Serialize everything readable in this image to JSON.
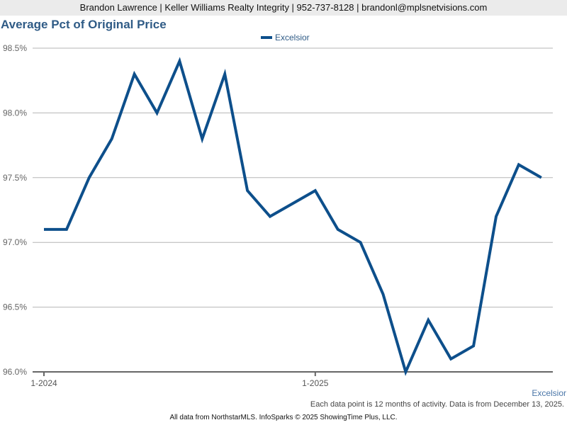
{
  "header": {
    "contact": "Brandon Lawrence | Keller Williams Realty Integrity | 952-737-8128 | brandonl@mplsnetvisions.com"
  },
  "title": "Average Pct of Original Price",
  "legend": {
    "label": "Excelsior",
    "color": "#0d4f8b"
  },
  "series_label": "Excelsior",
  "note": "Each data point is 12 months of activity. Data is from December 13, 2025.",
  "footer": "All data from NorthstarMLS. InfoSparks © 2025 ShowingTime Plus, LLC.",
  "chart_data": {
    "type": "line",
    "title": "Average Pct of Original Price",
    "xlabel": "",
    "ylabel": "",
    "ylim": [
      96.0,
      98.5
    ],
    "yticks": [
      "96.0%",
      "96.5%",
      "97.0%",
      "97.5%",
      "98.0%",
      "98.5%"
    ],
    "xticks": [
      "1-2024",
      "1-2025"
    ],
    "grid": true,
    "legend_position": "top-center",
    "x": [
      "1-2024",
      "2-2024",
      "3-2024",
      "4-2024",
      "5-2024",
      "6-2024",
      "7-2024",
      "8-2024",
      "9-2024",
      "10-2024",
      "11-2024",
      "12-2024",
      "1-2025",
      "2-2025",
      "3-2025",
      "4-2025",
      "5-2025",
      "6-2025",
      "7-2025",
      "8-2025",
      "9-2025",
      "10-2025",
      "11-2025"
    ],
    "series": [
      {
        "name": "Excelsior",
        "color": "#0d4f8b",
        "values": [
          97.1,
          97.1,
          97.5,
          97.8,
          98.3,
          98.0,
          98.4,
          97.8,
          98.3,
          97.4,
          97.2,
          97.3,
          97.4,
          97.1,
          97.0,
          96.6,
          96.0,
          96.4,
          96.1,
          96.2,
          97.2,
          97.6,
          97.5
        ]
      }
    ]
  }
}
